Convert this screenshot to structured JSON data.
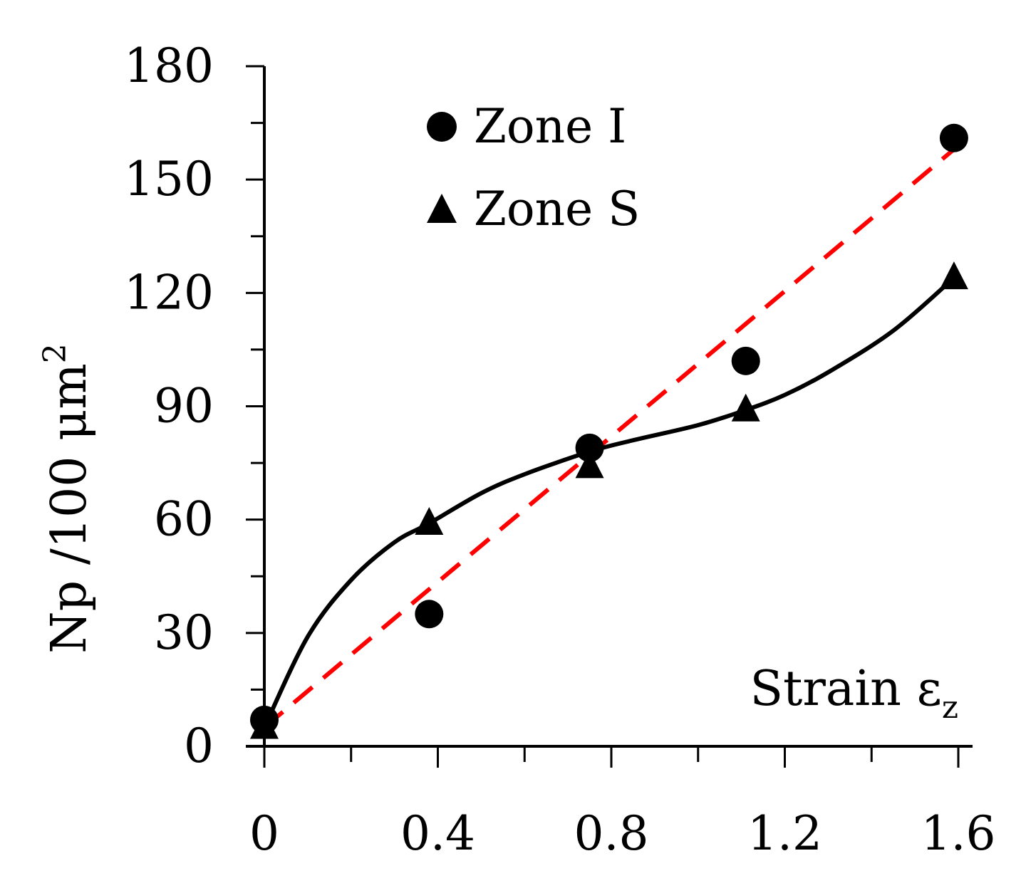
{
  "chart_data": {
    "type": "scatter",
    "title": "",
    "xlabel": "Strain ε",
    "xlabel_subscript": "z",
    "ylabel": "Np /100 μm",
    "ylabel_superscript": "2",
    "xlim": [
      0,
      1.6
    ],
    "ylim": [
      0,
      180
    ],
    "x_ticks": [
      0,
      0.4,
      0.8,
      1.2,
      1.6
    ],
    "x_tick_labels": [
      "0",
      "0.4",
      "0.8",
      "1.2",
      "1.6"
    ],
    "y_ticks": [
      0,
      30,
      60,
      90,
      120,
      150,
      180
    ],
    "y_tick_labels": [
      "0",
      "30",
      "60",
      "90",
      "120",
      "150",
      "180"
    ],
    "grid": false,
    "legend_position": "top-left",
    "series": [
      {
        "name": "Zone I",
        "marker": "circle",
        "color": "#000000",
        "x": [
          0,
          0.38,
          0.75,
          1.11,
          1.59
        ],
        "y": [
          7,
          35,
          79,
          102,
          161
        ],
        "fit": {
          "type": "linear",
          "style": "dashed",
          "color": "#ff0000",
          "x": [
            0,
            1.59
          ],
          "y": [
            5,
            158
          ]
        }
      },
      {
        "name": "Zone S",
        "marker": "triangle",
        "color": "#000000",
        "x": [
          0,
          0.38,
          0.75,
          1.11,
          1.59
        ],
        "y": [
          5,
          59,
          74,
          89,
          124
        ],
        "fit": {
          "type": "smooth",
          "style": "solid",
          "color": "#000000",
          "x": [
            0,
            0.1,
            0.2,
            0.3,
            0.38,
            0.5,
            0.6,
            0.75,
            0.85,
            1.0,
            1.11,
            1.2,
            1.3,
            1.45,
            1.59
          ],
          "y": [
            5,
            29,
            44,
            54,
            59,
            67,
            72,
            78,
            81,
            85,
            89,
            93,
            99,
            110,
            124
          ]
        }
      }
    ]
  }
}
